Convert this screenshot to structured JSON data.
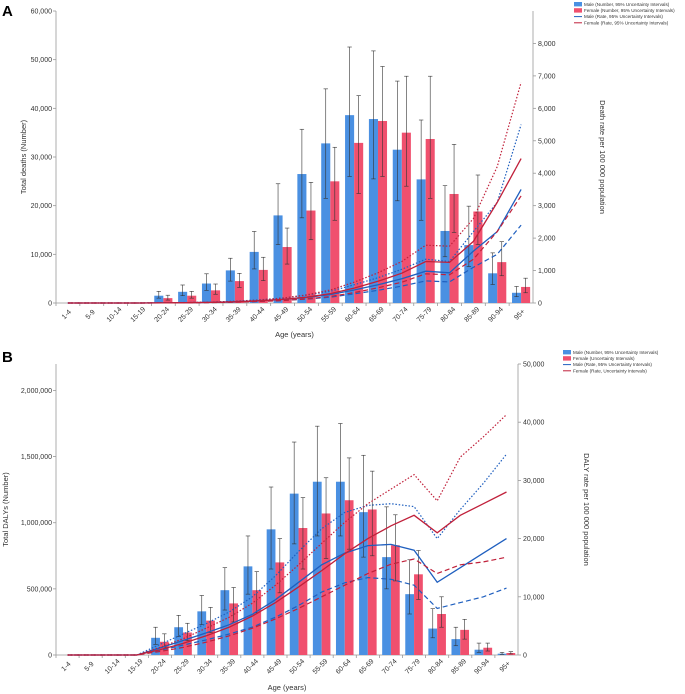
{
  "colors": {
    "male": "#4a90e2",
    "female": "#f0506e",
    "male_line": "#1f5fbf",
    "female_line": "#c0203a",
    "axis": "#999999",
    "error_bar": "#333333"
  },
  "chart_data": [
    {
      "panel": "A",
      "type": "bar",
      "categories": [
        "1-4",
        "5-9",
        "10-14",
        "15-19",
        "20-24",
        "25-29",
        "30-34",
        "35-39",
        "40-44",
        "45-49",
        "50-54",
        "55-59",
        "60-64",
        "65-69",
        "70-74",
        "75-79",
        "80-84",
        "85-89",
        "90-94",
        "95+"
      ],
      "xlabel": "Age (years)",
      "ylabel": "Total deaths (Number)",
      "y2label": "Death rate per 100 000 population",
      "ylim": [
        0,
        60000
      ],
      "y2lim": [
        0,
        9000
      ],
      "yticks": [
        0,
        10000,
        20000,
        30000,
        40000,
        50000,
        60000
      ],
      "yticklabels": [
        "0",
        "10,000",
        "20,000",
        "30,000",
        "40,000",
        "50,000",
        "60,000"
      ],
      "y2ticks": [
        0,
        1000,
        2000,
        3000,
        4000,
        5000,
        6000,
        7000,
        8000
      ],
      "y2ticklabels": [
        "0",
        "1,000",
        "2,000",
        "3,000",
        "4,000",
        "5,000",
        "6,000",
        "7,000",
        "8,000"
      ],
      "legend": [
        "Male (Number, 95% Uncertainty Intervals)",
        "Female (Number, 95% Uncertainty Intervals)",
        "Male (Rate, 95% Uncertainty Intervals)",
        "Female (Rate, 95% Uncertainty Intervals)"
      ],
      "series": [
        {
          "name": "Male (Number)",
          "axis": "left",
          "kind": "bar",
          "values": [
            0,
            0,
            0,
            0,
            1500,
            2300,
            4000,
            6700,
            10500,
            18000,
            26500,
            32800,
            38600,
            37800,
            31500,
            25400,
            14800,
            11900,
            6100,
            2100
          ],
          "lower": [
            0,
            0,
            0,
            0,
            1000,
            1500,
            2600,
            4500,
            7000,
            12000,
            17500,
            21500,
            26000,
            25500,
            21000,
            17000,
            9500,
            7500,
            3800,
            1300
          ],
          "upper": [
            0,
            0,
            0,
            0,
            2400,
            3700,
            6000,
            9200,
            14700,
            24500,
            35700,
            44000,
            52600,
            51800,
            45600,
            37600,
            24100,
            19900,
            10300,
            3400
          ]
        },
        {
          "name": "Female (Number)",
          "axis": "left",
          "kind": "bar",
          "values": [
            0,
            0,
            0,
            0,
            1000,
            1500,
            2600,
            4500,
            6800,
            11500,
            19000,
            25000,
            32900,
            37400,
            35000,
            33700,
            22400,
            18800,
            8400,
            3300
          ],
          "lower": [
            0,
            0,
            0,
            0,
            600,
            1000,
            1800,
            3200,
            4600,
            8000,
            13000,
            17000,
            22500,
            26000,
            24000,
            21500,
            14500,
            12000,
            5600,
            2100
          ],
          "upper": [
            0,
            0,
            0,
            0,
            1600,
            2400,
            3900,
            6100,
            9400,
            15400,
            24800,
            32000,
            42600,
            48600,
            46600,
            46600,
            32600,
            26300,
            12600,
            5100
          ]
        },
        {
          "name": "Male (Rate)",
          "axis": "right",
          "kind": "line",
          "values": [
            0,
            0,
            0,
            0,
            5,
            10,
            20,
            40,
            70,
            110,
            170,
            260,
            400,
            560,
            750,
            980,
            930,
            1600,
            2200,
            3500
          ],
          "lower": [
            0,
            0,
            0,
            0,
            3,
            7,
            14,
            28,
            50,
            80,
            120,
            180,
            280,
            390,
            520,
            680,
            650,
            1100,
            1500,
            2400
          ],
          "upper": [
            0,
            0,
            0,
            0,
            8,
            14,
            28,
            55,
            95,
            150,
            240,
            360,
            560,
            780,
            1040,
            1350,
            1280,
            2200,
            3100,
            5500
          ]
        },
        {
          "name": "Female (Rate)",
          "axis": "right",
          "kind": "line",
          "values": [
            0,
            0,
            0,
            0,
            4,
            9,
            18,
            35,
            65,
            110,
            180,
            290,
            460,
            670,
            920,
            1280,
            1250,
            1900,
            3100,
            4450
          ],
          "lower": [
            0,
            0,
            0,
            0,
            2,
            6,
            12,
            25,
            45,
            75,
            125,
            200,
            320,
            470,
            640,
            900,
            870,
            1350,
            2200,
            3300
          ],
          "upper": [
            0,
            0,
            0,
            0,
            6,
            13,
            26,
            50,
            90,
            150,
            250,
            400,
            640,
            930,
            1280,
            1780,
            1750,
            2600,
            4200,
            6800
          ]
        }
      ]
    },
    {
      "panel": "B",
      "type": "bar",
      "categories": [
        "1-4",
        "5-9",
        "10-14",
        "15-19",
        "20-24",
        "25-29",
        "30-34",
        "35-39",
        "40-44",
        "45-49",
        "50-54",
        "55-59",
        "60-64",
        "65-69",
        "70-74",
        "75-79",
        "80-84",
        "85-89",
        "90-94",
        "95+"
      ],
      "xlabel": "Age (years)",
      "ylabel": "Total DALYs (Number)",
      "y2label": "DALY rate per 100 000 population",
      "ylim": [
        0,
        2200000
      ],
      "y2lim": [
        0,
        50000
      ],
      "yticks": [
        0,
        500000,
        1000000,
        1500000,
        2000000
      ],
      "yticklabels": [
        "0",
        "500,000",
        "1,000,000",
        "1,500,000",
        "2,000,000"
      ],
      "y2ticks": [
        0,
        10000,
        20000,
        30000,
        40000,
        50000
      ],
      "y2ticklabels": [
        "0",
        "10,000",
        "20,000",
        "30,000",
        "40,000",
        "50,000"
      ],
      "legend": [
        "Male (Number, 95% Uncertainty Intervals)",
        "Female (Uncertainty Intervals)",
        "Male (Rate, 95% Uncertainty Intervals)",
        "Female (Rate, Uncertainty Intervals)"
      ],
      "series": [
        {
          "name": "Male (Number)",
          "axis": "left",
          "kind": "bar",
          "values": [
            0,
            0,
            0,
            0,
            130000,
            210000,
            330000,
            490000,
            670000,
            950000,
            1220000,
            1310000,
            1310000,
            1080000,
            740000,
            460000,
            200000,
            120000,
            40000,
            10000
          ],
          "lower": [
            0,
            0,
            0,
            0,
            80000,
            140000,
            230000,
            340000,
            460000,
            650000,
            840000,
            900000,
            900000,
            740000,
            500000,
            310000,
            130000,
            70000,
            20000,
            5000
          ],
          "upper": [
            0,
            0,
            0,
            0,
            210000,
            300000,
            450000,
            660000,
            900000,
            1270000,
            1610000,
            1730000,
            1750000,
            1510000,
            1120000,
            720000,
            350000,
            210000,
            90000,
            20000
          ]
        },
        {
          "name": "Female (Number)",
          "axis": "left",
          "kind": "bar",
          "values": [
            0,
            0,
            0,
            0,
            100000,
            170000,
            260000,
            390000,
            490000,
            700000,
            960000,
            1070000,
            1170000,
            1100000,
            830000,
            610000,
            310000,
            190000,
            55000,
            15000
          ],
          "lower": [
            0,
            0,
            0,
            0,
            60000,
            110000,
            170000,
            250000,
            320000,
            470000,
            650000,
            730000,
            800000,
            750000,
            560000,
            420000,
            210000,
            120000,
            30000,
            8000
          ],
          "upper": [
            0,
            0,
            0,
            0,
            160000,
            240000,
            360000,
            510000,
            630000,
            880000,
            1190000,
            1340000,
            1490000,
            1390000,
            1060000,
            790000,
            440000,
            270000,
            90000,
            25000
          ]
        },
        {
          "name": "Male (Rate)",
          "axis": "right",
          "kind": "line",
          "values": [
            0,
            0,
            0,
            0,
            1200,
            2500,
            3800,
            5200,
            7000,
            9500,
            12500,
            15500,
            17500,
            18800,
            19000,
            18000,
            12500,
            15000,
            17500,
            20000
          ],
          "lower": [
            0,
            0,
            0,
            0,
            800,
            1700,
            2600,
            3600,
            4800,
            6500,
            8500,
            10800,
            12400,
            13300,
            13000,
            12000,
            8000,
            9000,
            10000,
            11500
          ],
          "upper": [
            0,
            0,
            0,
            0,
            1800,
            3600,
            5400,
            7400,
            10000,
            13600,
            17800,
            21700,
            24500,
            25700,
            26000,
            25500,
            20000,
            25000,
            29500,
            34500
          ]
        },
        {
          "name": "Female (Rate)",
          "axis": "right",
          "kind": "line",
          "values": [
            0,
            0,
            0,
            0,
            900,
            2000,
            3300,
            4800,
            6700,
            9000,
            11700,
            14500,
            17400,
            20000,
            22200,
            24000,
            21000,
            24000,
            26000,
            28000
          ],
          "lower": [
            0,
            0,
            0,
            0,
            600,
            1300,
            2200,
            3300,
            4600,
            6200,
            8000,
            10000,
            12000,
            14000,
            15600,
            16500,
            14000,
            15500,
            16000,
            16800
          ],
          "upper": [
            0,
            0,
            0,
            0,
            1300,
            2800,
            4600,
            6500,
            8900,
            12000,
            15500,
            19200,
            22800,
            26000,
            28500,
            31000,
            26500,
            34000,
            37500,
            41300
          ]
        }
      ]
    }
  ]
}
